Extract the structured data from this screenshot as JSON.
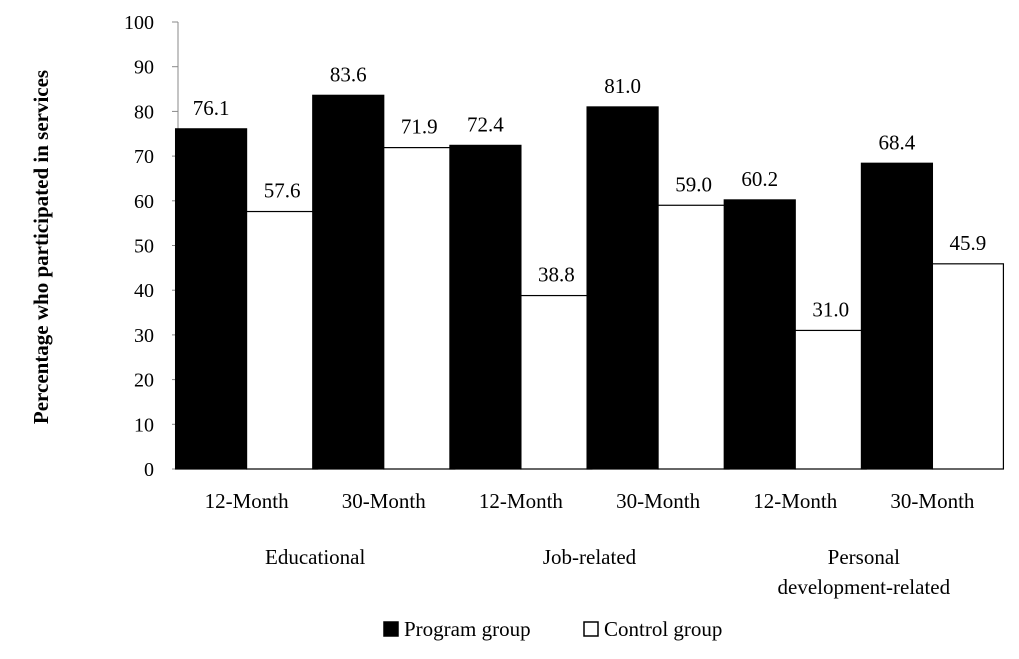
{
  "chart_data": {
    "type": "bar",
    "title": "",
    "ylabel": "Percentage who participated in services",
    "xlabel": "",
    "ylim": [
      0,
      100
    ],
    "yticks": [
      0,
      10,
      20,
      30,
      40,
      50,
      60,
      70,
      80,
      90,
      100
    ],
    "categories": [
      "12-Month",
      "30-Month",
      "12-Month",
      "30-Month",
      "12-Month",
      "30-Month"
    ],
    "groups": [
      {
        "label_lines": [
          "Educational"
        ],
        "categories": [
          0,
          1
        ]
      },
      {
        "label_lines": [
          "Job-related"
        ],
        "categories": [
          2,
          3
        ]
      },
      {
        "label_lines": [
          "Personal",
          "development-related"
        ],
        "categories": [
          4,
          5
        ]
      }
    ],
    "series": [
      {
        "name": "Program group",
        "color": "#000000",
        "values": [
          76.1,
          83.6,
          72.4,
          81.0,
          60.2,
          68.4
        ],
        "labels": [
          "76.1",
          "83.6",
          "72.4",
          "81.0",
          "60.2",
          "68.4"
        ]
      },
      {
        "name": "Control group",
        "color": "#ffffff",
        "values": [
          57.6,
          71.9,
          38.8,
          59.0,
          31.0,
          45.9
        ],
        "labels": [
          "57.6",
          "71.9",
          "38.8",
          "59.0",
          "31.0",
          "45.9"
        ]
      }
    ],
    "legend": {
      "position": "bottom"
    },
    "grid": false
  }
}
